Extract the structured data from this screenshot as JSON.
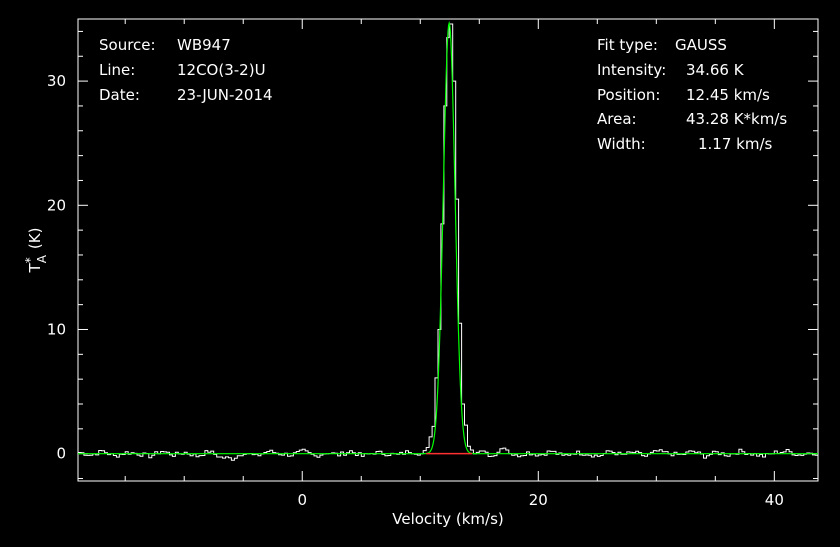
{
  "info_left": {
    "source_label": "Source:",
    "source_value": "WB947",
    "line_label": "Line:",
    "line_value": "12CO(3-2)U",
    "date_label": "Date:",
    "date_value": "23-JUN-2014"
  },
  "fit_info": {
    "fit_type_label": "Fit type:",
    "fit_type_value": "GAUSS",
    "intensity_label": "Intensity:",
    "intensity_value": "34.66 K",
    "position_label": "Position:",
    "position_value": "12.45 km/s",
    "area_label": "Area:",
    "area_value": "43.28 K*km/s",
    "width_label": "Width:",
    "width_value": "1.17 km/s"
  },
  "colors": {
    "background": "#000000",
    "axes": "#ffffff",
    "spectrum": "#ffffff",
    "fit": "#00ff00",
    "baseline": "#ff3030"
  },
  "chart_data": {
    "type": "line",
    "title": "",
    "xlabel": "Velocity (km/s)",
    "ylabel_main": "T",
    "ylabel_sup": "*",
    "ylabel_sub": "A",
    "ylabel_unit": "(K)",
    "xlim": [
      -19,
      43.7
    ],
    "ylim": [
      -2.2,
      35.0
    ],
    "x_ticks": [
      0,
      20,
      40
    ],
    "x_tick_labels": [
      "0",
      "20",
      "40"
    ],
    "y_ticks": [
      0,
      10,
      20,
      30
    ],
    "y_tick_labels": [
      "0",
      "10",
      "20",
      "30"
    ],
    "grid": false,
    "fit": {
      "amplitude": 34.66,
      "center": 12.45,
      "fwhm": 1.17
    },
    "baseline_range": [
      10.5,
      14.4
    ],
    "series": [
      {
        "type": "step",
        "x": [
          -19,
          -18,
          -17,
          -16,
          -15,
          -14,
          -13,
          -12,
          -11,
          -10,
          -9,
          -8,
          -7,
          -6,
          -5,
          -4,
          -3,
          -2,
          -1,
          0,
          1,
          2,
          3,
          4,
          5,
          6,
          7,
          8,
          9,
          10,
          10.5,
          11,
          11.5,
          11.75,
          12,
          12.25,
          12.45,
          12.75,
          13,
          13.25,
          13.5,
          14,
          14.5,
          15,
          16,
          17,
          17.5,
          18,
          19,
          20,
          21,
          22,
          23,
          24,
          25,
          26,
          27,
          28,
          29,
          30,
          31,
          32,
          33,
          34,
          35,
          36,
          37,
          38,
          39,
          40,
          41,
          42,
          43,
          43.7
        ],
        "y": [
          0.1,
          -0.1,
          0.2,
          -0.2,
          0.1,
          0.0,
          -0.2,
          0.2,
          -0.1,
          0.1,
          -0.2,
          0.2,
          -0.3,
          -0.4,
          0.1,
          -0.2,
          0.2,
          0.0,
          -0.1,
          0.2,
          -0.2,
          0.1,
          -0.1,
          0.2,
          -0.2,
          0.1,
          0.0,
          -0.1,
          0.2,
          0.0,
          0.5,
          2.2,
          10.0,
          18.5,
          28.0,
          33.5,
          34.6,
          30.0,
          20.5,
          10.5,
          4.0,
          0.6,
          0.0,
          0.2,
          -0.2,
          0.6,
          0.1,
          -0.2,
          0.1,
          -0.1,
          0.2,
          -0.2,
          0.1,
          0.0,
          -0.2,
          0.2,
          -0.1,
          0.1,
          -0.2,
          0.2,
          0.0,
          -0.1,
          0.2,
          -0.2,
          0.1,
          -0.1,
          0.2,
          0.0,
          -0.2,
          0.1,
          0.2,
          -0.1,
          0.1,
          0.0
        ]
      }
    ]
  }
}
